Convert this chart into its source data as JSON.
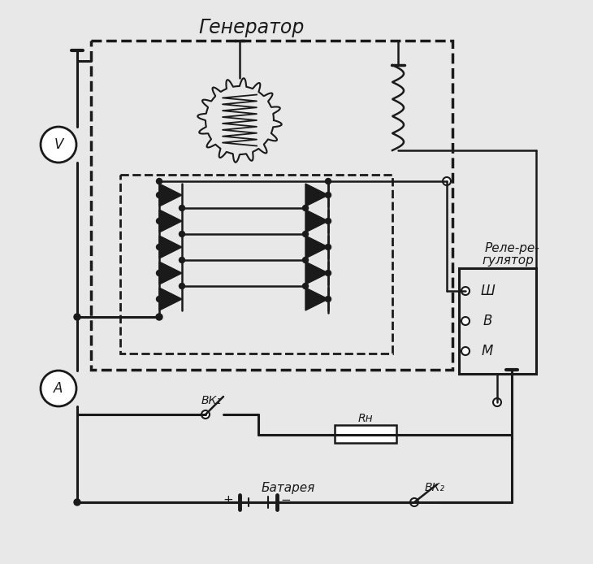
{
  "title": "Генератор",
  "relay_label_1": "Реле-ре-",
  "relay_label_2": "гулятор",
  "relay_terminals": [
    "Ш",
    "В",
    "М"
  ],
  "voltmeter_label": "V",
  "ammeter_label": "A",
  "bk1_label": "ВК₁",
  "bk2_label": "ВК₂",
  "rh_label": "Rн",
  "battery_label": "Батарея",
  "bg_color": "#e8e8e8",
  "line_color": "#1a1a1a",
  "lw": 1.8,
  "lw2": 2.2
}
